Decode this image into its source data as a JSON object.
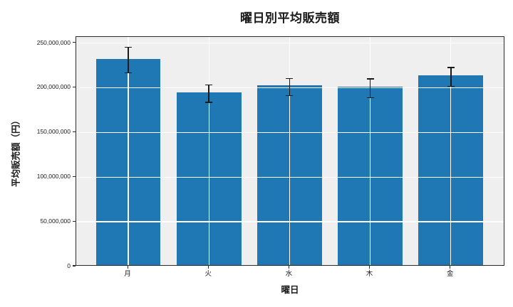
{
  "chart_data": {
    "type": "bar",
    "title": "曜日別平均販売額",
    "xlabel": "曜日",
    "ylabel": "平均販売額（円）",
    "categories": [
      "月",
      "火",
      "水",
      "木",
      "金"
    ],
    "category_names": [
      "mon",
      "tue",
      "wed",
      "thu",
      "fri"
    ],
    "values": [
      230900000,
      193500000,
      200800000,
      199300000,
      212000000
    ],
    "error_bars": [
      14300000,
      9700000,
      9600000,
      10400000,
      10400000
    ],
    "y_ticks": [
      0,
      50000000,
      100000000,
      150000000,
      200000000,
      250000000
    ],
    "y_tick_labels": [
      "0",
      "50,000,000",
      "100,000,000",
      "150,000,000",
      "200,000,000",
      "250,000,000"
    ],
    "ylim": [
      0,
      256800000
    ],
    "grid": true,
    "legend_position": "none",
    "bar_color": "#1f77b4",
    "plot_background": "#efefef",
    "grid_color": "#ffffff",
    "error_color": "#1a1a1a",
    "frame_color": "#2b2b2b"
  }
}
